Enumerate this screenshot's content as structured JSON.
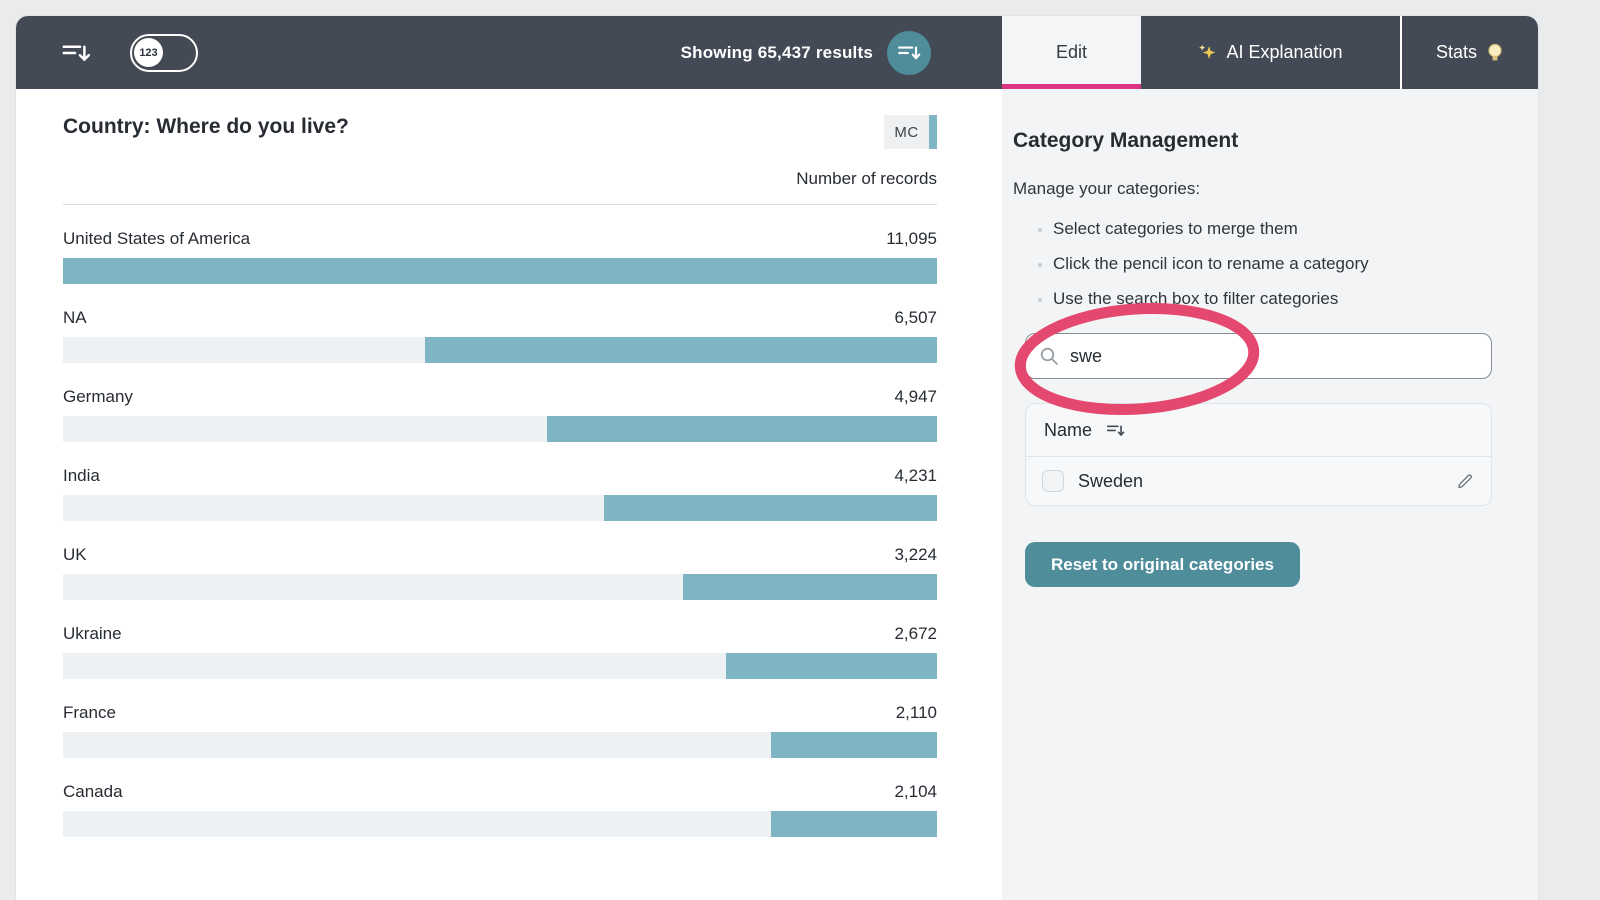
{
  "topbar": {
    "toggle_label": "123",
    "results_text": "Showing 65,437 results",
    "icons": {
      "left": "sort-descending-icon",
      "results_button": "sort-descending-icon",
      "ai_tab": "sparkles-icon",
      "stats_tab": "lightbulb-icon"
    },
    "tabs": [
      {
        "label": "Edit",
        "active": true
      },
      {
        "label": "AI Explanation",
        "active": false
      },
      {
        "label": "Stats",
        "active": false
      }
    ]
  },
  "chart_data": {
    "type": "bar",
    "orientation": "horizontal",
    "title": "Country: Where do you live?",
    "badge": "MC",
    "value_axis_label": "Number of records",
    "categories": [
      "United States of America",
      "NA",
      "Germany",
      "India",
      "UK",
      "Ukraine",
      "France",
      "Canada"
    ],
    "values": [
      11095,
      6507,
      4947,
      4231,
      3224,
      2672,
      2110,
      2104
    ],
    "display_values": [
      "11,095",
      "6,507",
      "4,947",
      "4,231",
      "3,224",
      "2,672",
      "2,110",
      "2,104"
    ],
    "max": 11095,
    "bar_color": "#7fb5c2",
    "track_color": "#eef1f3",
    "bars_right_aligned": true,
    "grid": false,
    "legend": "none"
  },
  "side_panel": {
    "title": "Category Management",
    "subtitle": "Manage your categories:",
    "bullets": [
      "Select categories to merge them",
      "Click the pencil icon to rename a category",
      "Use the search box to filter categories"
    ],
    "search": {
      "value": "swe",
      "icon": "search-icon"
    },
    "annotation_color": "#e5486f",
    "table": {
      "header": "Name",
      "header_icon": "sort-descending-icon",
      "rows": [
        {
          "name": "Sweden",
          "checked": false,
          "row_icon": "pencil-icon"
        }
      ]
    },
    "reset_label": "Reset to original categories"
  },
  "colors": {
    "topbar_bg": "#434a56",
    "accent_teal": "#4f8d9b",
    "bar_teal": "#7fb5c2",
    "active_tab_underline": "#d93580",
    "panel_bg": "#f3f4f6"
  }
}
